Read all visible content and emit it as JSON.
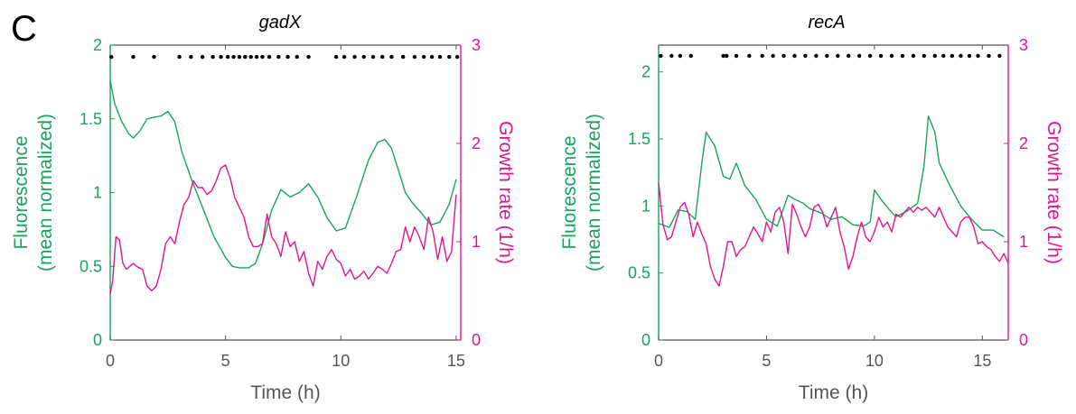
{
  "panel_label": "C",
  "colors": {
    "fluorescence": "#1aa35c",
    "growth": "#e0168c",
    "axis": "#555555",
    "dots": "#000000"
  },
  "chart_data": [
    {
      "type": "line",
      "title": "gadX",
      "xlabel": "Time (h)",
      "ylabel": "Fluorescence\n(mean normalized)",
      "ylabel_lines": [
        "Fluorescence",
        "(mean normalized)"
      ],
      "y2label": "Growth rate (1/h)",
      "xlim": [
        0,
        15.2
      ],
      "ylim": [
        0,
        2
      ],
      "y2lim": [
        0,
        3
      ],
      "xticks": [
        0,
        5,
        10,
        15
      ],
      "yticks": [
        0,
        0.5,
        1,
        1.5,
        2
      ],
      "yticklabels": [
        "0",
        "0.5",
        "1",
        "1.5",
        "2"
      ],
      "y2ticks": [
        0,
        1,
        2,
        3
      ],
      "grid": false,
      "series": [
        {
          "axis": "left",
          "color": "#1aa35c",
          "x": [
            0,
            0.2,
            0.5,
            0.8,
            1.0,
            1.3,
            1.6,
            1.9,
            2.2,
            2.5,
            2.8,
            3.1,
            3.5,
            4.0,
            4.5,
            5.0,
            5.3,
            5.6,
            6.0,
            6.3,
            6.6,
            7.0,
            7.4,
            7.8,
            8.2,
            8.6,
            9.0,
            9.4,
            9.8,
            10.2,
            10.7,
            11.2,
            11.6,
            11.9,
            12.2,
            12.5,
            12.8,
            13.1,
            13.5,
            13.9,
            14.3,
            14.7,
            15.0
          ],
          "values": [
            1.76,
            1.6,
            1.48,
            1.4,
            1.37,
            1.42,
            1.5,
            1.51,
            1.52,
            1.55,
            1.48,
            1.28,
            1.1,
            0.9,
            0.7,
            0.56,
            0.5,
            0.49,
            0.49,
            0.52,
            0.65,
            0.88,
            1.02,
            0.97,
            1.0,
            1.06,
            0.97,
            0.83,
            0.74,
            0.76,
            0.98,
            1.22,
            1.34,
            1.36,
            1.3,
            1.15,
            1.0,
            0.93,
            0.86,
            0.78,
            0.8,
            0.92,
            1.09
          ]
        },
        {
          "axis": "right",
          "color": "#e0168c",
          "x": [
            0,
            0.1,
            0.25,
            0.4,
            0.55,
            0.7,
            0.85,
            1.0,
            1.2,
            1.4,
            1.6,
            1.8,
            2.0,
            2.2,
            2.4,
            2.6,
            2.8,
            3.0,
            3.2,
            3.4,
            3.6,
            3.8,
            4.0,
            4.2,
            4.4,
            4.6,
            4.8,
            5.0,
            5.2,
            5.4,
            5.6,
            5.8,
            6.0,
            6.2,
            6.4,
            6.6,
            6.8,
            7.0,
            7.2,
            7.4,
            7.6,
            7.8,
            8.0,
            8.2,
            8.4,
            8.6,
            8.8,
            9.0,
            9.2,
            9.4,
            9.6,
            9.8,
            10.0,
            10.2,
            10.4,
            10.6,
            10.8,
            11.0,
            11.2,
            11.4,
            11.6,
            11.8,
            12.0,
            12.2,
            12.4,
            12.6,
            12.8,
            13.0,
            13.2,
            13.4,
            13.6,
            13.8,
            14.0,
            14.2,
            14.4,
            14.6,
            14.8,
            15.0
          ],
          "values": [
            0.47,
            0.6,
            1.05,
            1.02,
            0.78,
            0.72,
            0.75,
            0.78,
            0.74,
            0.72,
            0.55,
            0.5,
            0.55,
            0.72,
            0.98,
            1.05,
            0.98,
            1.2,
            1.38,
            1.45,
            1.62,
            1.55,
            1.55,
            1.48,
            1.52,
            1.62,
            1.75,
            1.78,
            1.65,
            1.45,
            1.35,
            1.25,
            1.05,
            0.95,
            0.95,
            0.98,
            1.28,
            1.05,
            0.98,
            0.85,
            1.1,
            0.95,
            1.0,
            0.8,
            0.9,
            0.68,
            0.55,
            0.8,
            0.72,
            0.85,
            0.92,
            0.82,
            0.78,
            0.65,
            0.72,
            0.62,
            0.65,
            0.7,
            0.62,
            0.68,
            0.75,
            0.72,
            0.68,
            0.78,
            0.9,
            0.92,
            1.15,
            1.0,
            1.15,
            1.05,
            0.92,
            1.25,
            1.1,
            0.82,
            1.05,
            0.8,
            0.9,
            1.48
          ]
        }
      ],
      "dot_x": [
        0.05,
        1.0,
        1.9,
        3.0,
        3.5,
        4.0,
        4.45,
        4.8,
        5.1,
        5.35,
        5.6,
        5.85,
        6.1,
        6.35,
        6.6,
        6.9,
        7.3,
        7.7,
        8.1,
        8.6,
        9.8,
        10.15,
        10.6,
        11.0,
        11.4,
        11.8,
        12.2,
        12.7,
        13.2,
        13.6,
        13.95,
        14.3,
        14.7,
        15.05
      ],
      "dot_y": 1.92
    },
    {
      "type": "line",
      "title": "recA",
      "xlabel": "Time (h)",
      "ylabel": "Fluorescence\n(mean normalized)",
      "ylabel_lines": [
        "Fluorescence",
        "(mean normalized)"
      ],
      "y2label": "Growth rate (1/h)",
      "xlim": [
        0,
        16.2
      ],
      "ylim": [
        0,
        2.2
      ],
      "y2lim": [
        0,
        3
      ],
      "xticks": [
        0,
        5,
        10,
        15
      ],
      "yticks": [
        0,
        0.5,
        1,
        1.5,
        2
      ],
      "yticklabels": [
        "0",
        "0.5",
        "1",
        "1.5",
        "2"
      ],
      "y2ticks": [
        0,
        1,
        2,
        3
      ],
      "grid": false,
      "series": [
        {
          "axis": "left",
          "color": "#1aa35c",
          "x": [
            0,
            0.5,
            0.9,
            1.3,
            1.7,
            2.0,
            2.2,
            2.6,
            3.0,
            3.3,
            3.6,
            4.0,
            4.5,
            5.0,
            5.5,
            6.0,
            6.3,
            6.7,
            7.0,
            7.5,
            8.0,
            8.5,
            9.0,
            9.5,
            9.8,
            10.0,
            10.3,
            10.7,
            11.0,
            11.5,
            12.0,
            12.3,
            12.5,
            12.8,
            13.0,
            13.5,
            14.0,
            14.5,
            15.0,
            15.5,
            16.0
          ],
          "values": [
            0.87,
            0.84,
            0.97,
            0.96,
            0.9,
            1.32,
            1.55,
            1.45,
            1.22,
            1.2,
            1.32,
            1.15,
            1.05,
            0.9,
            0.85,
            1.08,
            1.05,
            1.02,
            0.98,
            0.95,
            0.9,
            0.92,
            0.86,
            0.85,
            0.88,
            1.12,
            1.05,
            0.97,
            0.92,
            0.96,
            1.02,
            1.3,
            1.67,
            1.55,
            1.32,
            1.15,
            1.0,
            0.9,
            0.82,
            0.82,
            0.77
          ]
        },
        {
          "axis": "right",
          "color": "#e0168c",
          "x": [
            0,
            0.2,
            0.4,
            0.6,
            0.8,
            1.0,
            1.2,
            1.4,
            1.6,
            1.8,
            2.0,
            2.2,
            2.4,
            2.6,
            2.8,
            3.0,
            3.2,
            3.4,
            3.6,
            3.8,
            4.0,
            4.2,
            4.4,
            4.6,
            4.8,
            5.0,
            5.2,
            5.4,
            5.6,
            5.8,
            6.0,
            6.2,
            6.4,
            6.6,
            6.8,
            7.0,
            7.2,
            7.4,
            7.6,
            7.8,
            8.0,
            8.2,
            8.4,
            8.6,
            8.8,
            9.0,
            9.2,
            9.4,
            9.6,
            9.8,
            10.0,
            10.2,
            10.4,
            10.6,
            10.8,
            11.0,
            11.2,
            11.4,
            11.6,
            11.8,
            12.0,
            12.2,
            12.4,
            12.6,
            12.8,
            13.0,
            13.2,
            13.4,
            13.6,
            13.8,
            14.0,
            14.2,
            14.4,
            14.6,
            14.8,
            15.0,
            15.2,
            15.4,
            15.6,
            15.8,
            16.0,
            16.2
          ],
          "values": [
            1.6,
            1.18,
            1.02,
            1.05,
            1.2,
            1.35,
            1.4,
            1.28,
            1.05,
            1.2,
            1.08,
            0.98,
            0.75,
            0.62,
            0.55,
            0.75,
            1.0,
            1.0,
            0.85,
            0.92,
            0.95,
            1.05,
            1.15,
            1.08,
            1.0,
            1.2,
            1.1,
            1.3,
            1.35,
            1.2,
            0.88,
            1.38,
            1.28,
            1.15,
            1.05,
            1.15,
            1.35,
            1.38,
            1.3,
            1.15,
            1.25,
            1.35,
            1.1,
            0.95,
            0.72,
            0.85,
            1.05,
            1.2,
            1.05,
            1.0,
            1.1,
            1.25,
            1.15,
            1.2,
            1.1,
            1.28,
            1.25,
            1.3,
            1.35,
            1.3,
            1.35,
            1.32,
            1.35,
            1.3,
            1.25,
            1.35,
            1.25,
            1.15,
            1.1,
            1.05,
            1.2,
            1.25,
            1.25,
            1.15,
            0.98,
            1.0,
            0.95,
            0.92,
            0.85,
            0.8,
            0.88,
            0.78
          ]
        }
      ],
      "dot_x": [
        0.1,
        0.6,
        1.0,
        1.5,
        3.0,
        3.15,
        3.6,
        4.2,
        4.8,
        5.3,
        5.8,
        6.3,
        6.8,
        7.3,
        7.8,
        8.3,
        8.8,
        9.3,
        9.8,
        10.3,
        10.8,
        11.3,
        11.8,
        12.3,
        12.8,
        13.2,
        13.6,
        14.0,
        14.4,
        14.8,
        15.3,
        15.8
      ],
      "dot_y": 2.12
    }
  ]
}
